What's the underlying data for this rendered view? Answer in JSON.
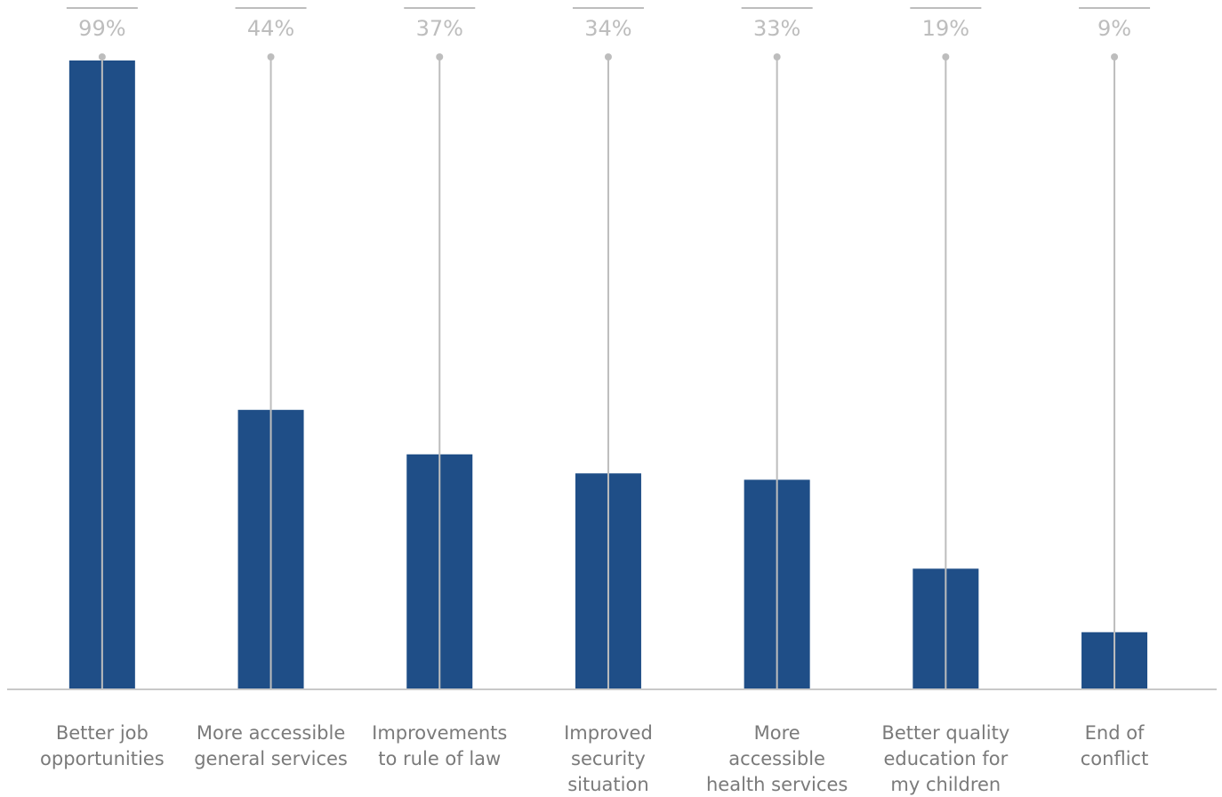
{
  "chart_data": {
    "type": "bar",
    "categories": [
      [
        "Better job",
        "opportunities"
      ],
      [
        "More accessible",
        "general services"
      ],
      [
        "Improvements",
        "to rule of law"
      ],
      [
        "Improved",
        "security",
        "situation"
      ],
      [
        "More",
        "accessible",
        "health services"
      ],
      [
        "Better quality",
        "education for",
        "my children"
      ],
      [
        "End of",
        "conflict"
      ]
    ],
    "values": [
      99,
      44,
      37,
      34,
      33,
      19,
      9
    ],
    "value_labels": [
      "99%",
      "44%",
      "37%",
      "34%",
      "33%",
      "19%",
      "9%"
    ],
    "unit": "%",
    "ylim": [
      0,
      100
    ],
    "grid": false,
    "legend": "none",
    "colors": {
      "bar": "#1f4e87",
      "leader": "#bdbdbd",
      "axis": "#c8c8c8",
      "value_text": "#bdbdbd",
      "category_text": "#7a7a7a"
    }
  }
}
